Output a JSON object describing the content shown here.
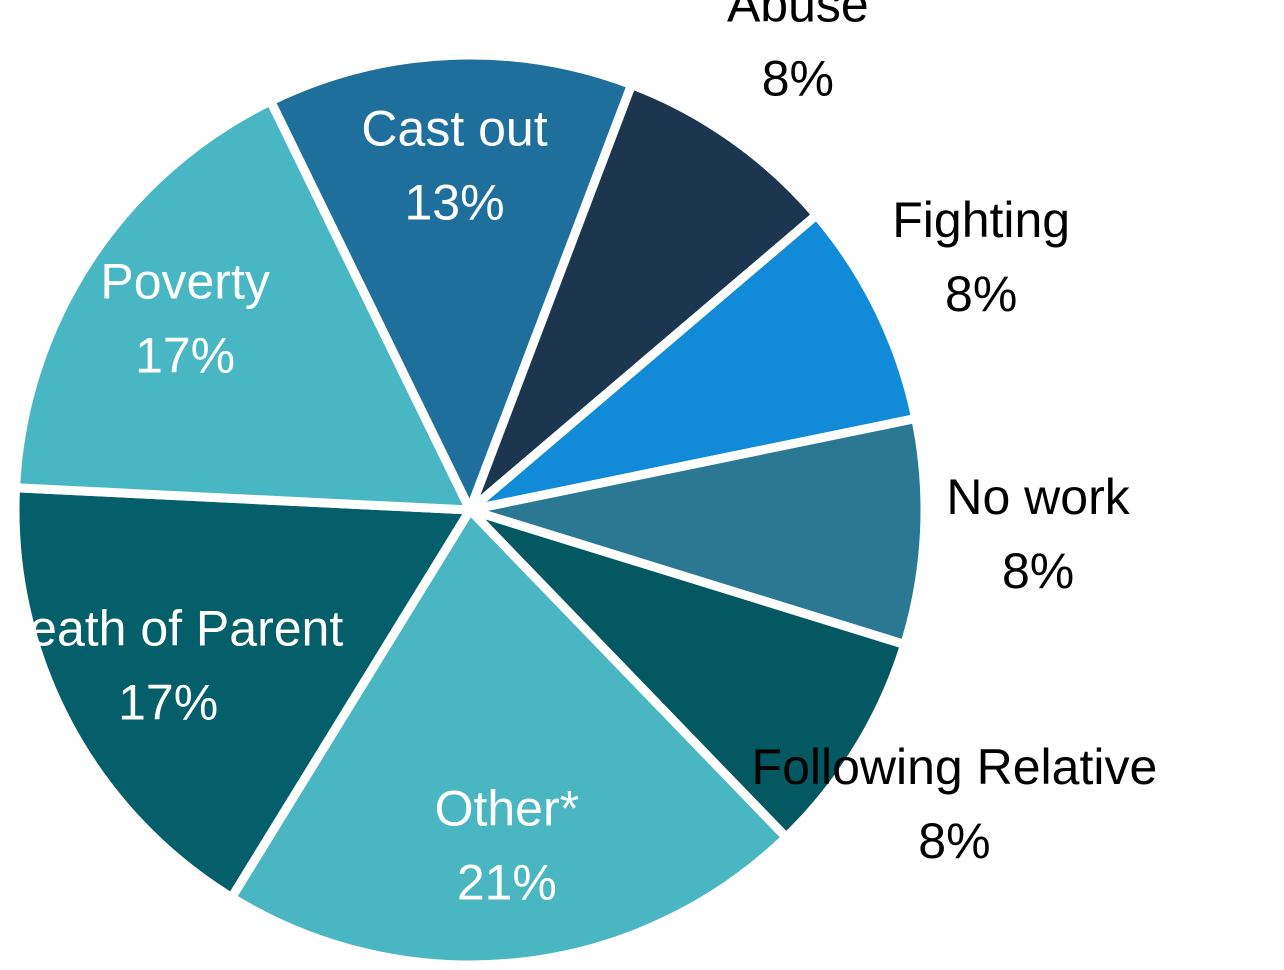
{
  "chart_data": {
    "type": "pie",
    "categories": [
      "Cast out",
      "Abuse",
      "Fighting",
      "No work",
      "Following Relative",
      "Other*",
      "Death of Parent",
      "Poverty"
    ],
    "values": [
      13,
      8,
      8,
      8,
      8,
      21,
      17,
      17
    ],
    "value_labels": [
      "13%",
      "8%",
      "8%",
      "8%",
      "8%",
      "21%",
      "17%",
      "17%"
    ],
    "colors": [
      "#1f6f9c",
      "#1c3650",
      "#118bd8",
      "#2b7893",
      "#045862",
      "#4ab6c1",
      "#045f6a",
      "#49b7c3"
    ]
  }
}
